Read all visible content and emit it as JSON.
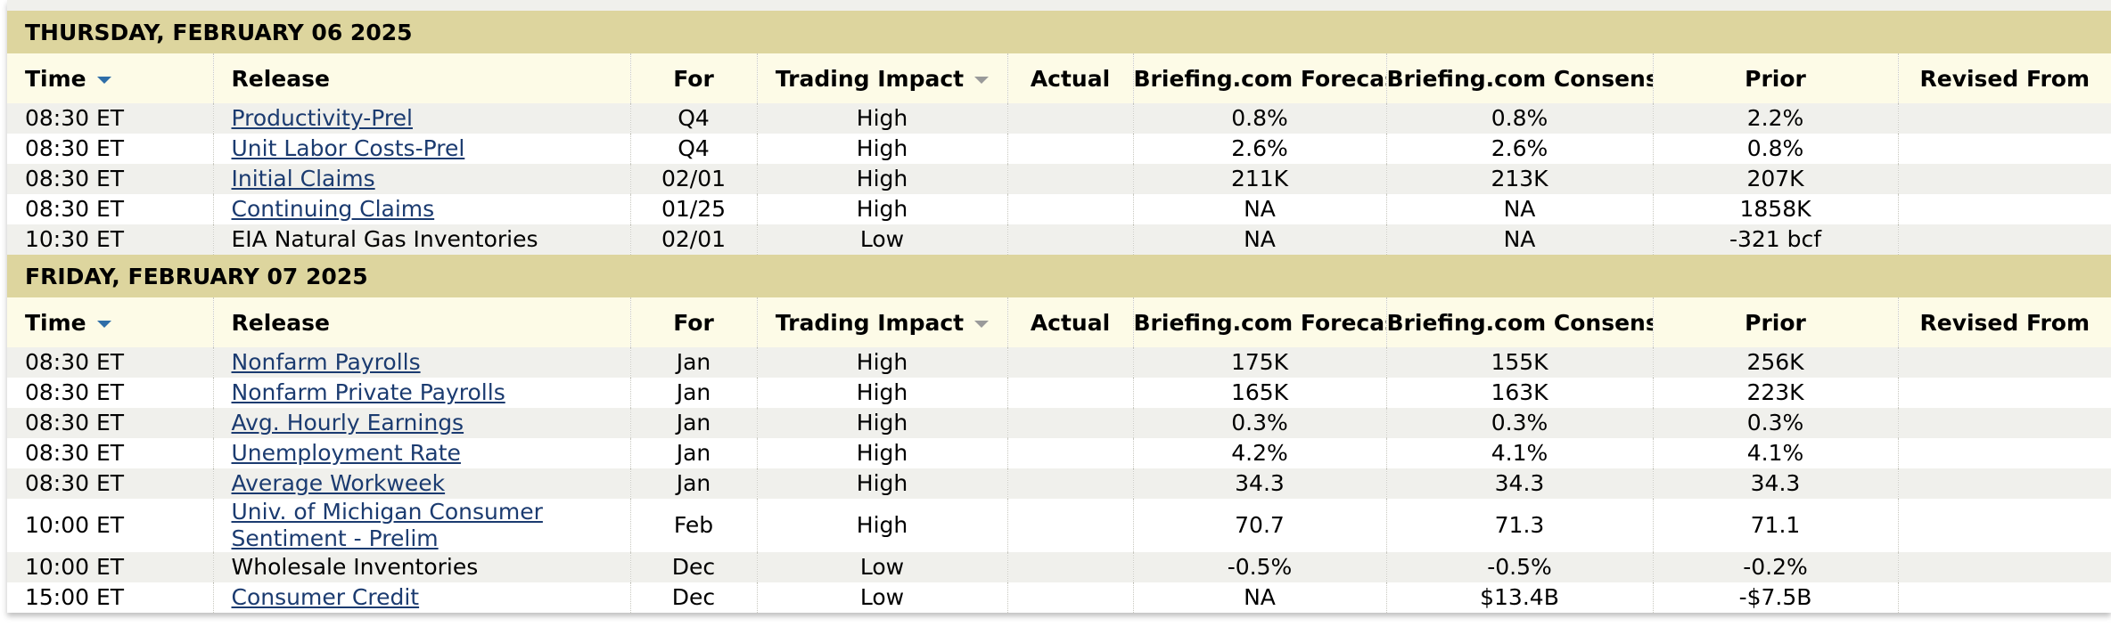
{
  "columns": [
    "Time",
    "Release",
    "For",
    "Trading Impact",
    "Actual",
    "Briefing.com Forecast",
    "Briefing.com Consensus",
    "Prior",
    "Revised From"
  ],
  "days": [
    {
      "title": "THURSDAY, FEBRUARY 06 2025",
      "rows": [
        {
          "link": true,
          "cells": [
            "08:30 ET",
            "Productivity-Prel",
            "Q4",
            "High",
            "0.8%",
            "0.8%",
            "2.2%"
          ]
        },
        {
          "link": true,
          "cells": [
            "08:30 ET",
            "Unit Labor Costs-Prel",
            "Q4",
            "High",
            "2.6%",
            "2.6%",
            "0.8%"
          ]
        },
        {
          "link": true,
          "cells": [
            "08:30 ET",
            "Initial Claims",
            "02/01",
            "High",
            "211K",
            "213K",
            "207K"
          ]
        },
        {
          "link": true,
          "cells": [
            "08:30 ET",
            "Continuing Claims",
            "01/25",
            "High",
            "NA",
            "NA",
            "1858K"
          ]
        },
        {
          "link": false,
          "cells": [
            "10:30 ET",
            "EIA Natural Gas Inventories",
            "02/01",
            "Low",
            "NA",
            "NA",
            "-321 bcf"
          ]
        }
      ]
    },
    {
      "title": "FRIDAY, FEBRUARY 07 2025",
      "rows": [
        {
          "link": true,
          "cells": [
            "08:30 ET",
            "Nonfarm Payrolls",
            "Jan",
            "High",
            "175K",
            "155K",
            "256K"
          ]
        },
        {
          "link": true,
          "cells": [
            "08:30 ET",
            "Nonfarm Private Payrolls",
            "Jan",
            "High",
            "165K",
            "163K",
            "223K"
          ]
        },
        {
          "link": true,
          "cells": [
            "08:30 ET",
            "Avg. Hourly Earnings",
            "Jan",
            "High",
            "0.3%",
            "0.3%",
            "0.3%"
          ]
        },
        {
          "link": true,
          "cells": [
            "08:30 ET",
            "Unemployment Rate",
            "Jan",
            "High",
            "4.2%",
            "4.1%",
            "4.1%"
          ]
        },
        {
          "link": true,
          "cells": [
            "08:30 ET",
            "Average Workweek",
            "Jan",
            "High",
            "34.3",
            "34.3",
            "34.3"
          ]
        },
        {
          "link": true,
          "cells": [
            "10:00 ET",
            "Univ. of Michigan Consumer Sentiment - Prelim",
            "Feb",
            "High",
            "70.7",
            "71.3",
            "71.1"
          ]
        },
        {
          "link": false,
          "cells": [
            "10:00 ET",
            "Wholesale Inventories",
            "Dec",
            "Low",
            "-0.5%",
            "-0.5%",
            "-0.2%"
          ]
        },
        {
          "link": true,
          "cells": [
            "15:00 ET",
            "Consumer Credit",
            "Dec",
            "Low",
            "NA",
            "$13.4B",
            "-$7.5B"
          ]
        }
      ]
    }
  ]
}
